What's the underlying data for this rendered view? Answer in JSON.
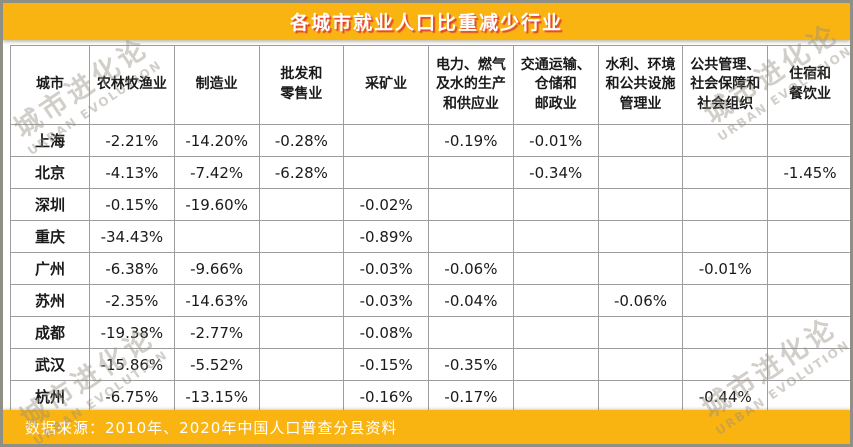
{
  "title": "各城市就业人口比重减少行业",
  "source_note": "数据来源：2010年、2020年中国人口普查分县资料",
  "watermark": {
    "cn": "城市进化论",
    "en": "URBAN EVOLUTION"
  },
  "colors": {
    "banner": "#f9b412",
    "title_text": "#ffffff",
    "title_shadow": "#de3a3a",
    "gridline": "#9d9d9d",
    "table_text": "#1a1a1a",
    "frame_border": "#8f8f85"
  },
  "chart_data": {
    "type": "table",
    "title": "各城市就业人口比重减少行业",
    "columns": [
      "城市",
      "农林牧渔业",
      "制造业",
      "批发和\n零售业",
      "采矿业",
      "电力、燃气\n及水的生产\n和供应业",
      "交通运输、\n仓储和\n邮政业",
      "水利、环境\n和公共设施\n管理业",
      "公共管理、\n社会保障和\n社会组织",
      "住宿和\n餐饮业"
    ],
    "rows": [
      {
        "city": "上海",
        "values": [
          "-2.21%",
          "-14.20%",
          "-0.28%",
          "",
          "-0.19%",
          "-0.01%",
          "",
          "",
          ""
        ]
      },
      {
        "city": "北京",
        "values": [
          "-4.13%",
          "-7.42%",
          "-6.28%",
          "",
          "",
          "-0.34%",
          "",
          "",
          "-1.45%"
        ]
      },
      {
        "city": "深圳",
        "values": [
          "-0.15%",
          "-19.60%",
          "",
          "-0.02%",
          "",
          "",
          "",
          "",
          ""
        ]
      },
      {
        "city": "重庆",
        "values": [
          "-34.43%",
          "",
          "",
          "-0.89%",
          "",
          "",
          "",
          "",
          ""
        ]
      },
      {
        "city": "广州",
        "values": [
          "-6.38%",
          "-9.66%",
          "",
          "-0.03%",
          "-0.06%",
          "",
          "",
          "-0.01%",
          ""
        ]
      },
      {
        "city": "苏州",
        "values": [
          "-2.35%",
          "-14.63%",
          "",
          "-0.03%",
          "-0.04%",
          "",
          "-0.06%",
          "",
          ""
        ]
      },
      {
        "city": "成都",
        "values": [
          "-19.38%",
          "-2.77%",
          "",
          "-0.08%",
          "",
          "",
          "",
          "",
          ""
        ]
      },
      {
        "city": "武汉",
        "values": [
          "-15.86%",
          "-5.52%",
          "",
          "-0.15%",
          "-0.35%",
          "",
          "",
          "",
          ""
        ]
      },
      {
        "city": "杭州",
        "values": [
          "-6.75%",
          "-13.15%",
          "",
          "-0.16%",
          "-0.17%",
          "",
          "",
          "-0.44%",
          ""
        ]
      }
    ],
    "source": "数据来源：2010年、2020年中国人口普查分县资料"
  }
}
